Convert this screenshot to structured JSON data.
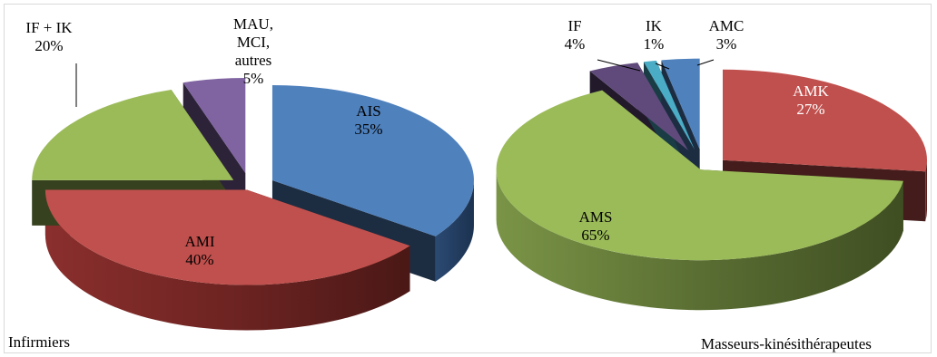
{
  "chart_data": [
    {
      "type": "pie",
      "subtitle": "Infirmiers",
      "slices": [
        {
          "label": "AIS",
          "value": 35,
          "text": "35%",
          "color": "#4f81bd"
        },
        {
          "label": "AMI",
          "value": 40,
          "text": "40%",
          "color": "#c0504d"
        },
        {
          "label": "IF + IK",
          "value": 20,
          "text": "20%",
          "color": "#9bbb59"
        },
        {
          "label": "MAU, MCI, autres",
          "label_lines": [
            "MAU,",
            "MCI,",
            "autres"
          ],
          "value": 5,
          "text": "5%",
          "color": "#8064a2"
        }
      ]
    },
    {
      "type": "pie",
      "subtitle": "Masseurs-kinésithérapeutes",
      "slices": [
        {
          "label": "AMK",
          "value": 27,
          "text": "27%",
          "color": "#c0504d"
        },
        {
          "label": "AMS",
          "value": 65,
          "text": "65%",
          "color": "#9bbb59"
        },
        {
          "label": "IF",
          "value": 4,
          "text": "4%",
          "color": "#604a7b"
        },
        {
          "label": "IK",
          "value": 1,
          "text": "1%",
          "color": "#4bacc6"
        },
        {
          "label": "AMC",
          "value": 3,
          "text": "3%",
          "color": "#4f81bd"
        }
      ]
    }
  ]
}
